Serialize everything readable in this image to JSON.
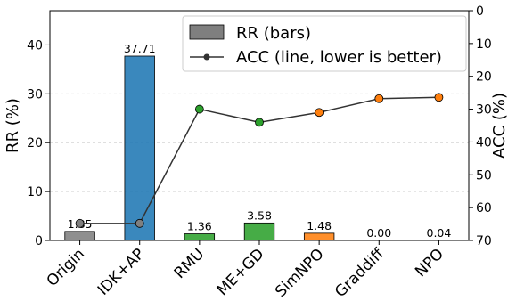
{
  "chart_data": {
    "type": "bar",
    "categories": [
      "Origin",
      "IDK+AP",
      "RMU",
      "ME+GD",
      "SimNPO",
      "Graddiff",
      "NPO"
    ],
    "series": [
      {
        "name": "RR (bars)",
        "type": "bar",
        "axis": "left",
        "values": [
          1.85,
          37.71,
          1.36,
          3.58,
          1.48,
          0.0,
          0.04
        ],
        "labels": [
          "1.85",
          "37.71",
          "1.36",
          "3.58",
          "1.48",
          "0.00",
          "0.04"
        ],
        "colors": [
          "#7f7f7f",
          "#1f77b4",
          "#2ca02c",
          "#2ca02c",
          "#ff7f0e",
          "#ff7f0e",
          "#ff7f0e"
        ]
      },
      {
        "name": "ACC (line, lower is better)",
        "type": "line",
        "axis": "right",
        "values": [
          64.8,
          64.8,
          30.0,
          34.0,
          31.0,
          26.8,
          26.4
        ],
        "marker_colors": [
          "#7f7f7f",
          "#7f7f7f",
          "#2ca02c",
          "#2ca02c",
          "#ff7f0e",
          "#ff7f0e",
          "#ff7f0e"
        ]
      }
    ],
    "ylabel": "RR (%)",
    "y2label": "ACC (%)",
    "ylim": [
      0,
      47
    ],
    "y2lim": [
      70,
      0
    ],
    "y2_inverted": true,
    "yticks": [
      "0",
      "10",
      "20",
      "30",
      "40"
    ],
    "y2ticks": [
      "0",
      "10",
      "20",
      "30",
      "40",
      "50",
      "60",
      "70"
    ],
    "grid": true,
    "legend_position": "top-right",
    "legend_swatch_color": "#7f7f7f",
    "line_color": "#333333"
  }
}
